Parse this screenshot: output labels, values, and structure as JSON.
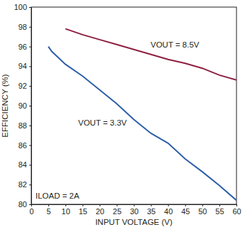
{
  "chart_data": {
    "type": "line",
    "x_label": "INPUT VOLTAGE (V)",
    "y_label": "EFFICIENCY (%)",
    "annotations": [
      "ILOAD = 2A"
    ],
    "xlim": [
      0,
      60
    ],
    "xticks": [
      0,
      5,
      10,
      15,
      20,
      25,
      30,
      35,
      40,
      45,
      50,
      55,
      60
    ],
    "ylim": [
      80,
      100
    ],
    "yticks": [
      80,
      82,
      84,
      86,
      88,
      90,
      92,
      94,
      96,
      98,
      100
    ],
    "grid": false,
    "series": [
      {
        "name": "VOUT = 8.5V",
        "color": "#8e1f40",
        "x": [
          10,
          15,
          20,
          25,
          30,
          35,
          40,
          45,
          50,
          55,
          60
        ],
        "values": [
          97.8,
          97.2,
          96.7,
          96.2,
          95.7,
          95.2,
          94.7,
          94.3,
          93.8,
          93.1,
          92.6
        ]
      },
      {
        "name": "VOUT = 3.3V",
        "color": "#2e5fa8",
        "x": [
          5,
          6,
          10,
          15,
          20,
          25,
          30,
          35,
          40,
          45,
          50,
          55,
          60
        ],
        "values": [
          96.0,
          95.5,
          94.2,
          93.0,
          91.6,
          90.2,
          88.6,
          87.2,
          86.2,
          84.6,
          83.3,
          81.9,
          80.4
        ]
      }
    ]
  }
}
